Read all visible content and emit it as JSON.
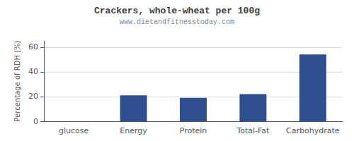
{
  "chart_data": {
    "type": "bar",
    "title": "Crackers, whole-wheat per 100g",
    "subtitle": "www.dietandfitnesstoday.com",
    "categories": [
      "glucose",
      "Energy",
      "Protein",
      "Total-Fat",
      "Carbohydrate"
    ],
    "values": [
      0,
      21,
      19,
      22,
      54
    ],
    "color": "#2e4e8f",
    "ylabel": "Percentage of RDH (%)",
    "ylim": [
      0,
      65
    ],
    "yticks": [
      0,
      20,
      40,
      60
    ],
    "grid": true
  }
}
